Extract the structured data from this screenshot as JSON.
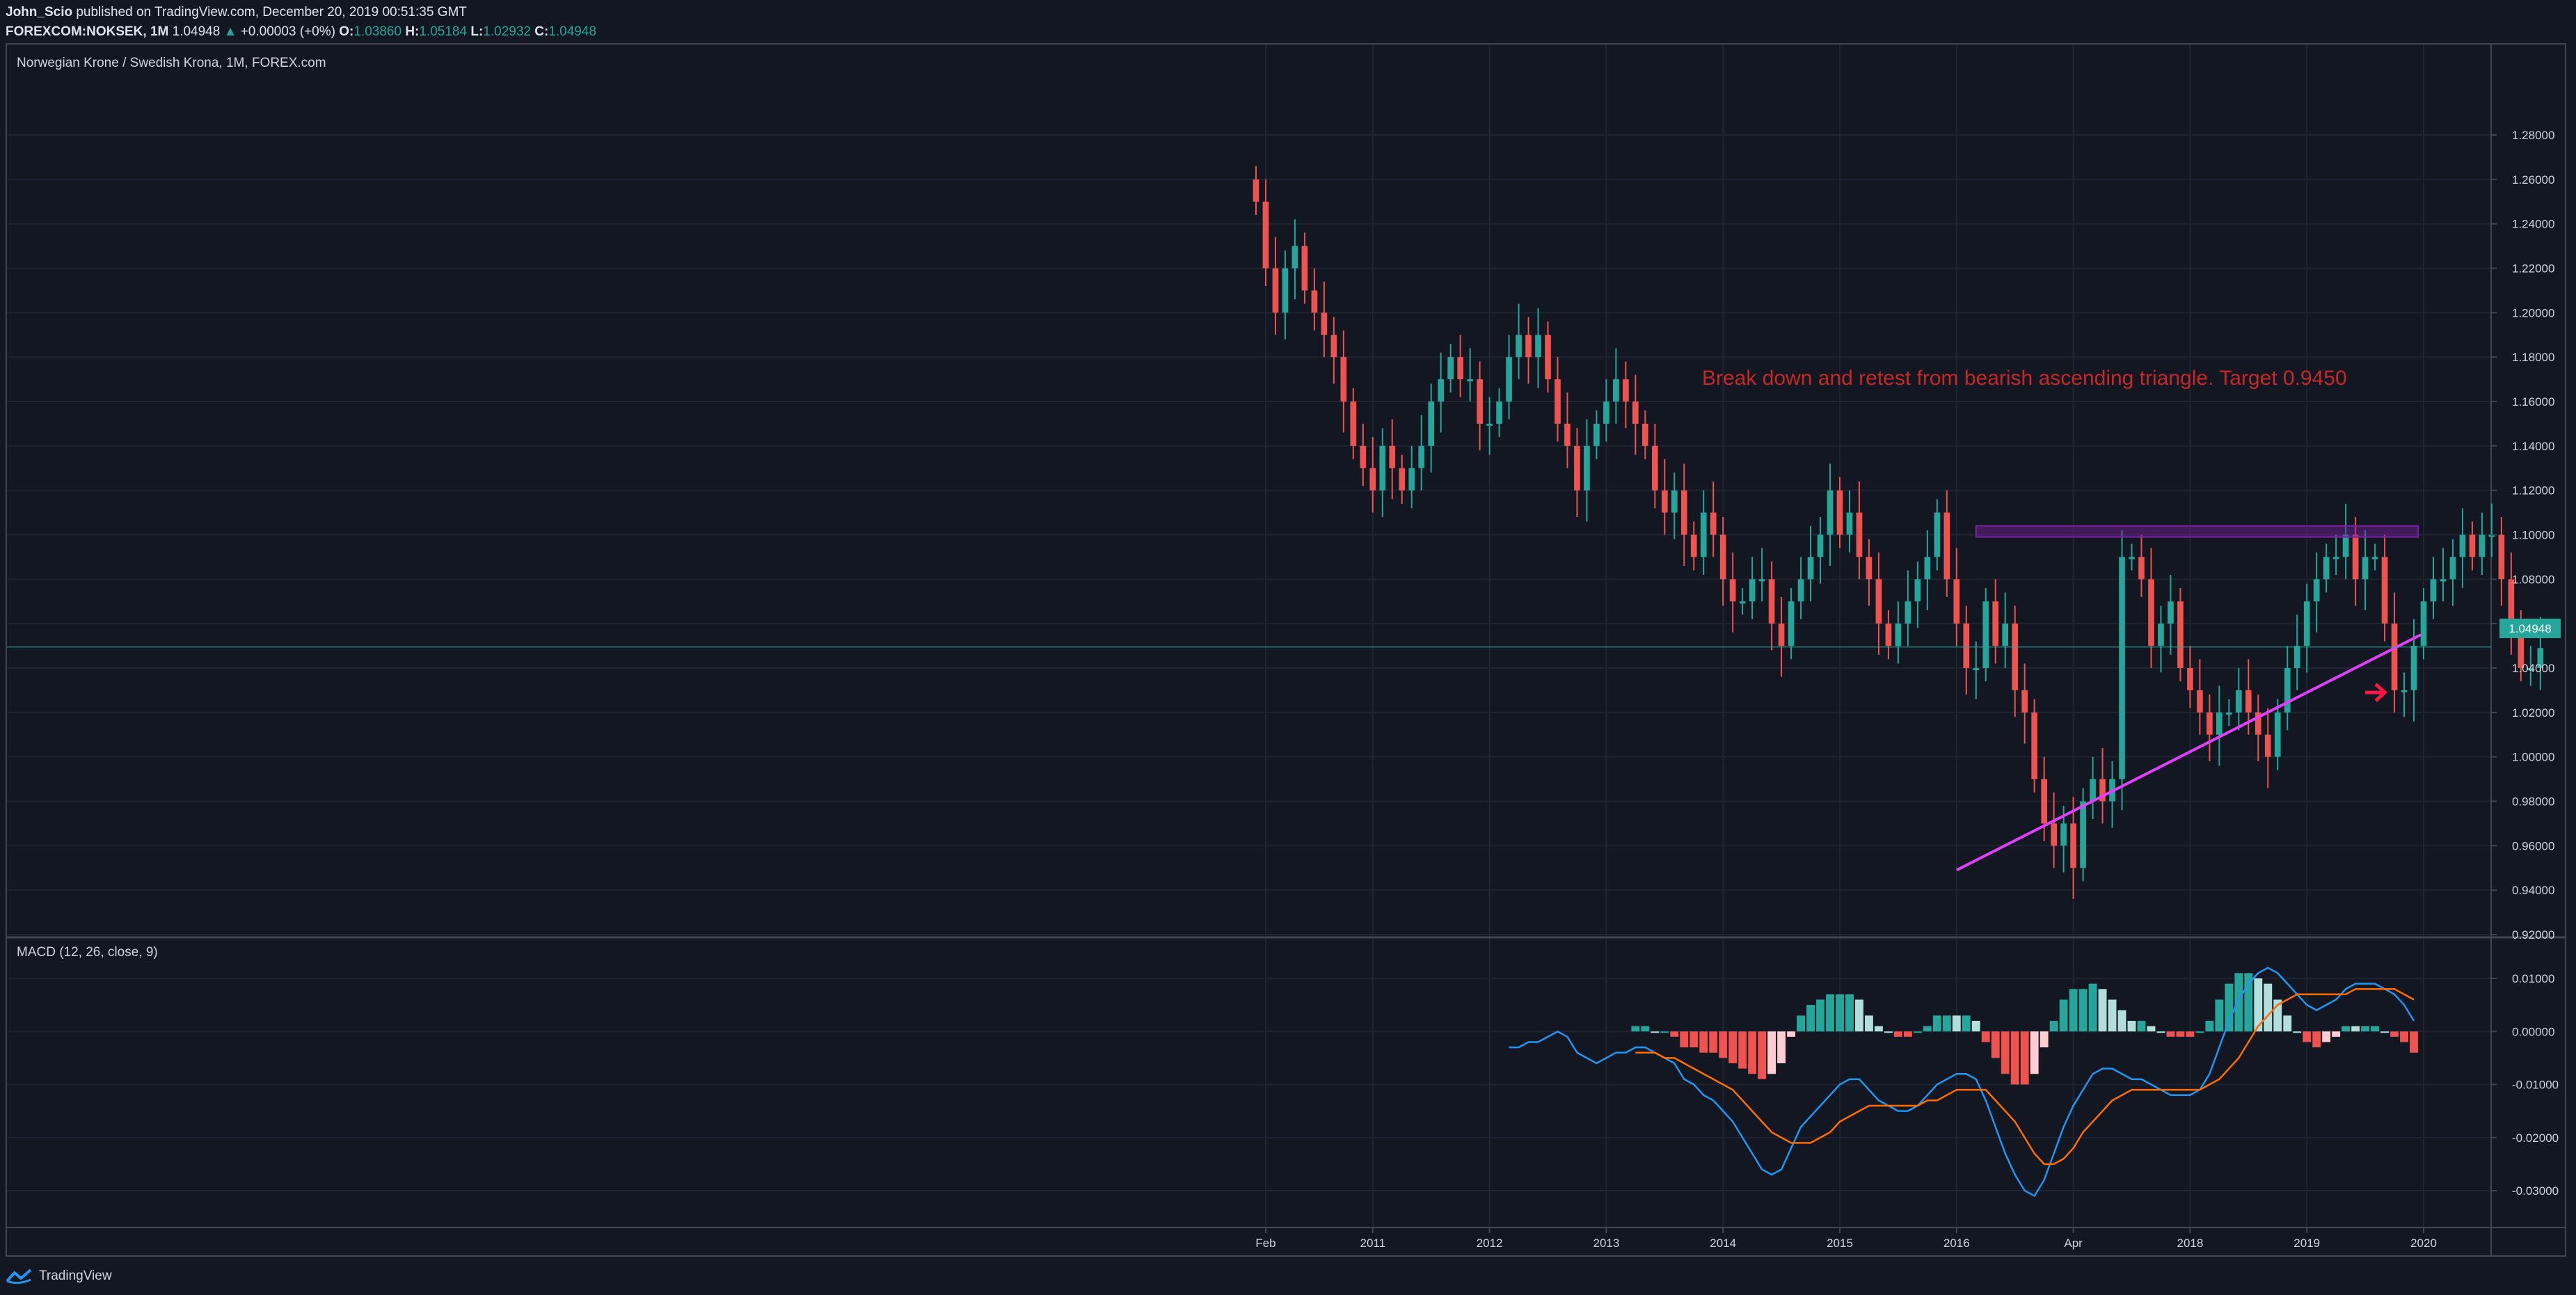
{
  "header": {
    "publisher": "John_Scio",
    "publisher_rest": "published on TradingView.com, December 20, 2019 00:51:35 GMT",
    "symbol": "FOREXCOM:NOKSEK, 1M",
    "last": "1.04948",
    "arrow": "▲",
    "change": "+0.00003 (+0%)",
    "o_label": "O:",
    "o_value": "1.03860",
    "h_label": "H:",
    "h_value": "1.05184",
    "l_label": "L:",
    "l_value": "1.02932",
    "c_label": "C:",
    "c_value": "1.04948"
  },
  "pane": {
    "legend": "Norwegian Krone / Swedish Krona, 1M, FOREX.com",
    "annotation": "Break down and retest from bearish ascending triangle. Target 0.9450",
    "price_badge": "1.04948"
  },
  "macd": {
    "legend": "MACD (12, 26, close, 9)"
  },
  "footer": {
    "brand": "TradingView"
  },
  "colors": {
    "background": "#131722",
    "up": "#26a69a",
    "down": "#ef5350",
    "trendline": "#e040fb",
    "resistance_zone": "#7b1fa2",
    "annotation": "#c62828",
    "macd_line": "#2196f3",
    "signal_line": "#ff6d00"
  },
  "chart_data": [
    {
      "type": "candlestick",
      "title": "Norwegian Krone / Swedish Krona, 1M, FOREX.com",
      "x_tick_labels": [
        "Feb",
        "2011",
        "2012",
        "2013",
        "2014",
        "2015",
        "2016",
        "Apr",
        "2018",
        "2019",
        "2020"
      ],
      "y_tick_labels": [
        "1.28000",
        "1.26000",
        "1.24000",
        "1.22000",
        "1.20000",
        "1.18000",
        "1.16000",
        "1.14000",
        "1.12000",
        "1.10000",
        "1.08000",
        "1.06000",
        "1.04000",
        "1.02000",
        "1.00000",
        "0.98000",
        "0.96000",
        "0.94000",
        "0.92000"
      ],
      "ylim": [
        0.92,
        1.29
      ],
      "x_start": "2010-01",
      "close": [
        1.25,
        1.22,
        1.2,
        1.22,
        1.23,
        1.21,
        1.2,
        1.19,
        1.18,
        1.16,
        1.14,
        1.13,
        1.12,
        1.14,
        1.13,
        1.12,
        1.13,
        1.14,
        1.16,
        1.17,
        1.18,
        1.17,
        1.17,
        1.15,
        1.15,
        1.16,
        1.18,
        1.19,
        1.18,
        1.19,
        1.17,
        1.15,
        1.14,
        1.12,
        1.14,
        1.15,
        1.16,
        1.17,
        1.16,
        1.15,
        1.14,
        1.12,
        1.11,
        1.12,
        1.1,
        1.09,
        1.11,
        1.1,
        1.08,
        1.07,
        1.07,
        1.08,
        1.08,
        1.06,
        1.05,
        1.07,
        1.08,
        1.09,
        1.1,
        1.12,
        1.1,
        1.11,
        1.09,
        1.08,
        1.06,
        1.05,
        1.06,
        1.07,
        1.08,
        1.09,
        1.11,
        1.08,
        1.06,
        1.04,
        1.04,
        1.07,
        1.05,
        1.06,
        1.03,
        1.02,
        0.99,
        0.97,
        0.96,
        0.97,
        0.95,
        0.98,
        0.99,
        0.98,
        0.99,
        1.09,
        1.09,
        1.08,
        1.05,
        1.06,
        1.07,
        1.04,
        1.03,
        1.02,
        1.01,
        1.02,
        1.02,
        1.03,
        1.02,
        1.01,
        1.0,
        1.02,
        1.04,
        1.05,
        1.07,
        1.08,
        1.09,
        1.09,
        1.1,
        1.08,
        1.09,
        1.09,
        1.06,
        1.03,
        1.03,
        1.05,
        1.07,
        1.08,
        1.08,
        1.09,
        1.1,
        1.09,
        1.1,
        1.1,
        1.08,
        1.06,
        1.04,
        1.04,
        1.049
      ],
      "trendline": [
        [
          "2016-01",
          0.949
        ],
        [
          "2019-12",
          1.055
        ]
      ],
      "resistance_zone": [
        1.099,
        1.104
      ],
      "annotation": "Break down and retest from bearish ascending triangle. Target 0.9450",
      "last_price": 1.04948
    },
    {
      "type": "bar+line",
      "title": "MACD (12, 26, close, 9)",
      "y_tick_labels": [
        "0.01000",
        "0.00000",
        "-0.01000",
        "-0.02000",
        "-0.03000"
      ],
      "ylim": [
        -0.034,
        0.012
      ],
      "x_start": "2012-03",
      "macd": [
        -0.003,
        -0.003,
        -0.002,
        -0.002,
        -0.001,
        0.0,
        -0.001,
        -0.004,
        -0.005,
        -0.006,
        -0.005,
        -0.004,
        -0.004,
        -0.003,
        -0.003,
        -0.004,
        -0.005,
        -0.006,
        -0.009,
        -0.01,
        -0.012,
        -0.013,
        -0.015,
        -0.017,
        -0.02,
        -0.023,
        -0.026,
        -0.027,
        -0.026,
        -0.022,
        -0.018,
        -0.016,
        -0.014,
        -0.012,
        -0.01,
        -0.009,
        -0.009,
        -0.011,
        -0.013,
        -0.014,
        -0.015,
        -0.015,
        -0.014,
        -0.012,
        -0.01,
        -0.009,
        -0.008,
        -0.008,
        -0.009,
        -0.013,
        -0.018,
        -0.023,
        -0.027,
        -0.03,
        -0.031,
        -0.028,
        -0.023,
        -0.018,
        -0.014,
        -0.011,
        -0.008,
        -0.007,
        -0.007,
        -0.008,
        -0.009,
        -0.009,
        -0.01,
        -0.011,
        -0.012,
        -0.012,
        -0.012,
        -0.011,
        -0.008,
        -0.003,
        0.002,
        0.006,
        0.009,
        0.011,
        0.012,
        0.011,
        0.009,
        0.007,
        0.005,
        0.004,
        0.005,
        0.006,
        0.008,
        0.009,
        0.009,
        0.009,
        0.008,
        0.007,
        0.005,
        0.002
      ],
      "signal": [
        null,
        null,
        null,
        null,
        null,
        null,
        null,
        null,
        null,
        null,
        null,
        null,
        null,
        -0.004,
        -0.004,
        -0.004,
        -0.005,
        -0.005,
        -0.006,
        -0.007,
        -0.008,
        -0.009,
        -0.01,
        -0.011,
        -0.013,
        -0.015,
        -0.017,
        -0.019,
        -0.02,
        -0.021,
        -0.021,
        -0.021,
        -0.02,
        -0.019,
        -0.017,
        -0.016,
        -0.015,
        -0.014,
        -0.014,
        -0.014,
        -0.014,
        -0.014,
        -0.014,
        -0.013,
        -0.013,
        -0.012,
        -0.011,
        -0.011,
        -0.011,
        -0.011,
        -0.013,
        -0.015,
        -0.017,
        -0.02,
        -0.023,
        -0.025,
        -0.025,
        -0.024,
        -0.022,
        -0.019,
        -0.017,
        -0.015,
        -0.013,
        -0.012,
        -0.011,
        -0.011,
        -0.011,
        -0.011,
        -0.011,
        -0.011,
        -0.011,
        -0.011,
        -0.01,
        -0.009,
        -0.007,
        -0.005,
        -0.002,
        0.001,
        0.003,
        0.005,
        0.006,
        0.007,
        0.007,
        0.007,
        0.007,
        0.007,
        0.007,
        0.008,
        0.008,
        0.008,
        0.008,
        0.008,
        0.007,
        0.006
      ]
    }
  ]
}
